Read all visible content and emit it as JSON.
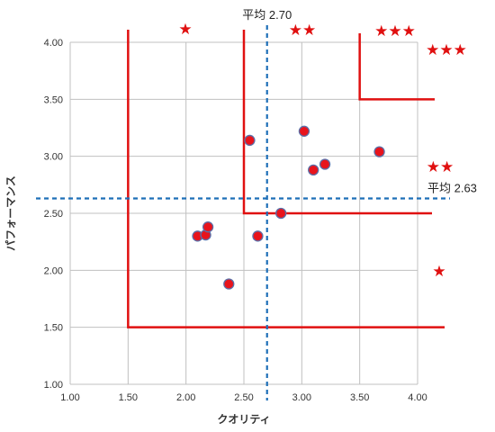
{
  "chart_data": {
    "type": "scatter",
    "title": "",
    "xlabel": "クオリティ",
    "ylabel": "パフォーマンス",
    "xlim": [
      1.0,
      4.0
    ],
    "ylim": [
      1.0,
      4.0
    ],
    "xticks": [
      "1.00",
      "1.50",
      "2.00",
      "2.50",
      "3.00",
      "3.50",
      "4.00"
    ],
    "yticks": [
      "1.00",
      "1.50",
      "2.00",
      "2.50",
      "3.00",
      "3.50",
      "4.00"
    ],
    "grid": true,
    "legend": "none",
    "points": [
      {
        "x": 2.1,
        "y": 2.3
      },
      {
        "x": 2.17,
        "y": 2.31
      },
      {
        "x": 2.19,
        "y": 2.38
      },
      {
        "x": 2.37,
        "y": 1.88
      },
      {
        "x": 2.55,
        "y": 3.14
      },
      {
        "x": 2.62,
        "y": 2.3
      },
      {
        "x": 2.82,
        "y": 2.5
      },
      {
        "x": 3.02,
        "y": 3.22
      },
      {
        "x": 3.1,
        "y": 2.88
      },
      {
        "x": 3.2,
        "y": 2.93
      },
      {
        "x": 3.67,
        "y": 3.04
      }
    ],
    "mean_x": {
      "value": 2.7,
      "label": "平均 2.70"
    },
    "mean_y": {
      "value": 2.63,
      "label": "平均 2.63"
    },
    "thresholds": {
      "one_star": {
        "x": 1.5,
        "y": 1.5
      },
      "two_star": {
        "x": 2.5,
        "y": 2.5
      },
      "three_star": {
        "x": 3.5,
        "y": 3.5
      }
    },
    "star_labels": {
      "top_one": "★",
      "top_two": "★★",
      "top_three": "★★★",
      "right_three": "★★★",
      "right_two": "★★",
      "right_one": "★"
    },
    "colors": {
      "point_fill": "#e8141c",
      "point_stroke": "#5b6fa8",
      "threshold_line": "#e01010",
      "mean_line": "#1e6fb8",
      "grid": "#c0c0c0"
    }
  }
}
